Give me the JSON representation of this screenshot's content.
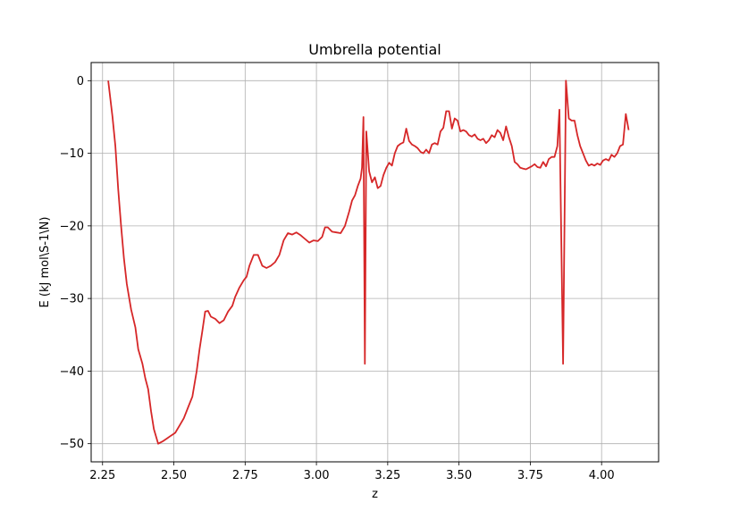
{
  "chart_data": {
    "type": "line",
    "title": "Umbrella potential",
    "xlabel": "z",
    "ylabel": "E (kJ mol\\S-1\\N)",
    "xlim": [
      2.21,
      4.2
    ],
    "ylim": [
      -52.5,
      2.5
    ],
    "grid": true,
    "x_ticks": [
      2.25,
      2.5,
      2.75,
      3.0,
      3.25,
      3.5,
      3.75,
      4.0
    ],
    "x_tick_labels": [
      "2.25",
      "2.50",
      "2.75",
      "3.00",
      "3.25",
      "3.50",
      "3.75",
      "4.00"
    ],
    "y_ticks": [
      0,
      -10,
      -20,
      -30,
      -40,
      -50
    ],
    "y_tick_labels": [
      "0",
      "−10",
      "−20",
      "−30",
      "−40",
      "−50"
    ],
    "series": [
      {
        "color": "#d62728",
        "points": [
          [
            2.27,
            0.0
          ],
          [
            2.285,
            -5.0
          ],
          [
            2.295,
            -9.0
          ],
          [
            2.305,
            -15.0
          ],
          [
            2.315,
            -20.0
          ],
          [
            2.325,
            -24.5
          ],
          [
            2.335,
            -28.0
          ],
          [
            2.35,
            -31.5
          ],
          [
            2.365,
            -34.0
          ],
          [
            2.375,
            -37.0
          ],
          [
            2.39,
            -39.0
          ],
          [
            2.4,
            -41.0
          ],
          [
            2.41,
            -42.5
          ],
          [
            2.42,
            -45.5
          ],
          [
            2.43,
            -48.0
          ],
          [
            2.445,
            -50.0
          ],
          [
            2.46,
            -49.7
          ],
          [
            2.475,
            -49.3
          ],
          [
            2.49,
            -48.9
          ],
          [
            2.505,
            -48.5
          ],
          [
            2.52,
            -47.5
          ],
          [
            2.535,
            -46.5
          ],
          [
            2.55,
            -45.0
          ],
          [
            2.565,
            -43.5
          ],
          [
            2.58,
            -40.0
          ],
          [
            2.59,
            -37.0
          ],
          [
            2.6,
            -34.5
          ],
          [
            2.61,
            -31.8
          ],
          [
            2.62,
            -31.7
          ],
          [
            2.63,
            -32.5
          ],
          [
            2.645,
            -32.8
          ],
          [
            2.66,
            -33.4
          ],
          [
            2.675,
            -33.0
          ],
          [
            2.69,
            -31.8
          ],
          [
            2.705,
            -31.0
          ],
          [
            2.715,
            -29.8
          ],
          [
            2.73,
            -28.5
          ],
          [
            2.745,
            -27.5
          ],
          [
            2.755,
            -27.0
          ],
          [
            2.765,
            -25.5
          ],
          [
            2.78,
            -24.0
          ],
          [
            2.795,
            -24.0
          ],
          [
            2.81,
            -25.5
          ],
          [
            2.825,
            -25.8
          ],
          [
            2.84,
            -25.5
          ],
          [
            2.855,
            -25.0
          ],
          [
            2.87,
            -24.0
          ],
          [
            2.885,
            -22.0
          ],
          [
            2.9,
            -21.0
          ],
          [
            2.915,
            -21.2
          ],
          [
            2.93,
            -20.9
          ],
          [
            2.945,
            -21.3
          ],
          [
            2.96,
            -21.8
          ],
          [
            2.975,
            -22.3
          ],
          [
            2.99,
            -22.0
          ],
          [
            3.005,
            -22.1
          ],
          [
            3.02,
            -21.5
          ],
          [
            3.03,
            -20.2
          ],
          [
            3.04,
            -20.2
          ],
          [
            3.055,
            -20.8
          ],
          [
            3.07,
            -20.9
          ],
          [
            3.085,
            -21.0
          ],
          [
            3.1,
            -20.0
          ],
          [
            3.115,
            -18.0
          ],
          [
            3.125,
            -16.5
          ],
          [
            3.135,
            -15.8
          ],
          [
            3.145,
            -14.5
          ],
          [
            3.155,
            -13.5
          ],
          [
            3.16,
            -12.0
          ],
          [
            3.165,
            -5.0
          ],
          [
            3.17,
            -39.0
          ],
          [
            3.175,
            -7.0
          ],
          [
            3.185,
            -12.5
          ],
          [
            3.195,
            -14.0
          ],
          [
            3.205,
            -13.3
          ],
          [
            3.215,
            -14.8
          ],
          [
            3.225,
            -14.5
          ],
          [
            3.235,
            -13.0
          ],
          [
            3.245,
            -12.0
          ],
          [
            3.255,
            -11.3
          ],
          [
            3.265,
            -11.7
          ],
          [
            3.275,
            -10.0
          ],
          [
            3.285,
            -9.0
          ],
          [
            3.295,
            -8.7
          ],
          [
            3.305,
            -8.5
          ],
          [
            3.315,
            -6.6
          ],
          [
            3.325,
            -8.3
          ],
          [
            3.335,
            -8.8
          ],
          [
            3.345,
            -9.0
          ],
          [
            3.355,
            -9.3
          ],
          [
            3.365,
            -9.8
          ],
          [
            3.375,
            -10.0
          ],
          [
            3.385,
            -9.5
          ],
          [
            3.395,
            -10.0
          ],
          [
            3.405,
            -8.8
          ],
          [
            3.415,
            -8.6
          ],
          [
            3.425,
            -8.8
          ],
          [
            3.435,
            -7.0
          ],
          [
            3.445,
            -6.5
          ],
          [
            3.455,
            -4.2
          ],
          [
            3.465,
            -4.2
          ],
          [
            3.475,
            -6.6
          ],
          [
            3.485,
            -5.2
          ],
          [
            3.495,
            -5.5
          ],
          [
            3.505,
            -7.0
          ],
          [
            3.515,
            -6.8
          ],
          [
            3.525,
            -7.0
          ],
          [
            3.535,
            -7.5
          ],
          [
            3.545,
            -7.7
          ],
          [
            3.555,
            -7.4
          ],
          [
            3.565,
            -8.0
          ],
          [
            3.575,
            -8.2
          ],
          [
            3.585,
            -8.0
          ],
          [
            3.595,
            -8.6
          ],
          [
            3.605,
            -8.2
          ],
          [
            3.615,
            -7.5
          ],
          [
            3.625,
            -7.8
          ],
          [
            3.635,
            -6.8
          ],
          [
            3.645,
            -7.2
          ],
          [
            3.655,
            -8.2
          ],
          [
            3.665,
            -6.3
          ],
          [
            3.675,
            -7.8
          ],
          [
            3.685,
            -9.0
          ],
          [
            3.695,
            -11.2
          ],
          [
            3.705,
            -11.5
          ],
          [
            3.715,
            -12.0
          ],
          [
            3.725,
            -12.1
          ],
          [
            3.735,
            -12.2
          ],
          [
            3.745,
            -12.0
          ],
          [
            3.755,
            -11.8
          ],
          [
            3.765,
            -11.5
          ],
          [
            3.775,
            -11.9
          ],
          [
            3.785,
            -12.0
          ],
          [
            3.795,
            -11.2
          ],
          [
            3.805,
            -11.8
          ],
          [
            3.815,
            -10.8
          ],
          [
            3.825,
            -10.5
          ],
          [
            3.835,
            -10.5
          ],
          [
            3.845,
            -9.0
          ],
          [
            3.852,
            -4.0
          ],
          [
            3.865,
            -39.0
          ],
          [
            3.875,
            0.0
          ],
          [
            3.885,
            -5.2
          ],
          [
            3.895,
            -5.5
          ],
          [
            3.905,
            -5.5
          ],
          [
            3.915,
            -7.5
          ],
          [
            3.925,
            -9.0
          ],
          [
            3.935,
            -10.0
          ],
          [
            3.945,
            -11.0
          ],
          [
            3.955,
            -11.7
          ],
          [
            3.965,
            -11.5
          ],
          [
            3.975,
            -11.7
          ],
          [
            3.985,
            -11.4
          ],
          [
            3.995,
            -11.6
          ],
          [
            4.005,
            -11.0
          ],
          [
            4.015,
            -10.8
          ],
          [
            4.025,
            -11.0
          ],
          [
            4.035,
            -10.2
          ],
          [
            4.045,
            -10.5
          ],
          [
            4.055,
            -10.0
          ],
          [
            4.065,
            -9.0
          ],
          [
            4.075,
            -8.8
          ],
          [
            4.085,
            -4.6
          ],
          [
            4.095,
            -6.8
          ]
        ]
      }
    ]
  }
}
